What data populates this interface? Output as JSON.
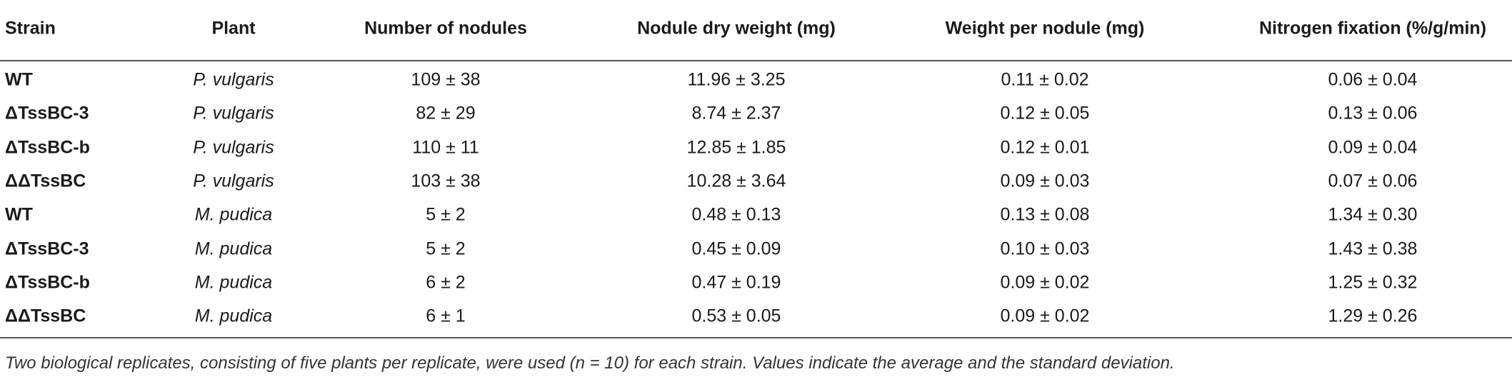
{
  "table": {
    "header": [
      "Strain",
      "Plant",
      "Number of nodules",
      "Nodule dry weight (mg)",
      "Weight per nodule (mg)",
      "Nitrogen fixation (%/g/min)"
    ],
    "rows": [
      [
        "WT",
        "P. vulgaris",
        "109 ± 38",
        "11.96 ± 3.25",
        "0.11 ± 0.02",
        "0.06 ± 0.04"
      ],
      [
        "ΔTssBC-3",
        "P. vulgaris",
        "82 ± 29",
        "8.74 ± 2.37",
        "0.12 ± 0.05",
        "0.13 ± 0.06"
      ],
      [
        "ΔTssBC-b",
        "P. vulgaris",
        "110 ± 11",
        "12.85 ± 1.85",
        "0.12 ± 0.01",
        "0.09 ± 0.04"
      ],
      [
        "ΔΔTssBC",
        "P. vulgaris",
        "103 ± 38",
        "10.28 ± 3.64",
        "0.09 ± 0.03",
        "0.07 ± 0.06"
      ],
      [
        "WT",
        "M. pudica",
        "5 ± 2",
        "0.48 ± 0.13",
        "0.13 ± 0.08",
        "1.34 ± 0.30"
      ],
      [
        "ΔTssBC-3",
        "M. pudica",
        "5 ± 2",
        "0.45 ± 0.09",
        "0.10 ± 0.03",
        "1.43 ± 0.38"
      ],
      [
        "ΔTssBC-b",
        "M. pudica",
        "6 ± 2",
        "0.47 ± 0.19",
        "0.09 ± 0.02",
        "1.25 ± 0.32"
      ],
      [
        "ΔΔTssBC",
        "M. pudica",
        "6 ± 1",
        "0.53 ± 0.05",
        "0.09 ± 0.02",
        "1.29 ± 0.26"
      ]
    ],
    "footnote": "Two biological replicates, consisting of five plants per replicate, were used (n = 10) for each strain. Values indicate the average and the standard deviation."
  }
}
